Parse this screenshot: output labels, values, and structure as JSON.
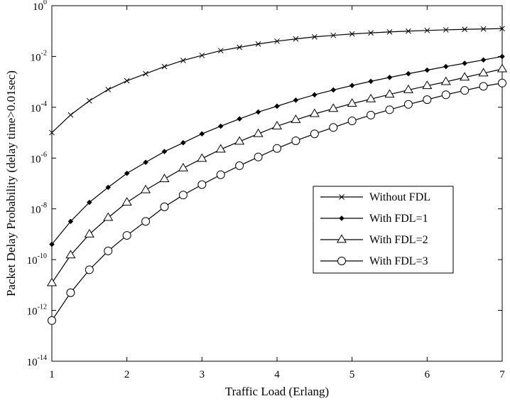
{
  "chart_data": {
    "type": "line",
    "title": "",
    "xlabel": "Traffic Load (Erlang)",
    "ylabel": "Packet Delay Probability (delay time>0.01sec)",
    "xlim": [
      1,
      7
    ],
    "ylim": [
      1e-14,
      1
    ],
    "y_scale": "log",
    "grid": false,
    "legend_position": "center-right",
    "x_ticks": [
      "1",
      "2",
      "3",
      "4",
      "5",
      "6",
      "7"
    ],
    "y_ticks": [
      {
        "base": "10",
        "exp": "0"
      },
      {
        "base": "10",
        "exp": "-2"
      },
      {
        "base": "10",
        "exp": "-4"
      },
      {
        "base": "10",
        "exp": "-6"
      },
      {
        "base": "10",
        "exp": "-8"
      },
      {
        "base": "10",
        "exp": "-10"
      },
      {
        "base": "10",
        "exp": "-12"
      },
      {
        "base": "10",
        "exp": "-14"
      }
    ],
    "x": [
      1,
      1.25,
      1.5,
      1.75,
      2,
      2.25,
      2.5,
      2.75,
      3,
      3.25,
      3.5,
      3.75,
      4,
      4.25,
      4.5,
      4.75,
      5,
      5.25,
      5.5,
      5.75,
      6,
      6.25,
      6.5,
      6.75,
      7
    ],
    "series": [
      {
        "name": "Without FDL",
        "marker": "x",
        "values": [
          1e-05,
          5e-05,
          0.00018,
          0.0005,
          0.0011,
          0.0021,
          0.004,
          0.007,
          0.011,
          0.017,
          0.023,
          0.031,
          0.04,
          0.049,
          0.059,
          0.068,
          0.077,
          0.085,
          0.093,
          0.1,
          0.106,
          0.112,
          0.117,
          0.121,
          0.125
        ]
      },
      {
        "name": "With FDL=1",
        "marker": "diamond",
        "values": [
          4e-10,
          3.2e-09,
          1.8e-08,
          7e-08,
          2.5e-07,
          6.8e-07,
          1.8e-06,
          4e-06,
          9e-06,
          1.8e-05,
          3.5e-05,
          6.5e-05,
          0.00011,
          0.00019,
          0.00031,
          0.00048,
          0.00072,
          0.00105,
          0.0015,
          0.0021,
          0.0029,
          0.004,
          0.0054,
          0.0073,
          0.01
        ]
      },
      {
        "name": "With FDL=2",
        "marker": "triangle",
        "values": [
          1.2e-11,
          1.5e-10,
          1e-09,
          4.5e-09,
          1.8e-08,
          5.5e-08,
          1.5e-07,
          4e-07,
          9.5e-07,
          2.2e-06,
          4.5e-06,
          9e-06,
          1.8e-05,
          3.2e-05,
          5.5e-05,
          8.8e-05,
          0.00014,
          0.00021,
          0.00032,
          0.00048,
          0.0007,
          0.001,
          0.0015,
          0.0022,
          0.0032
        ]
      },
      {
        "name": "With FDL=3",
        "marker": "circle",
        "values": [
          4e-13,
          5e-12,
          4e-11,
          2.2e-10,
          9e-10,
          3.2e-09,
          1.2e-08,
          3.5e-08,
          9e-08,
          2.2e-07,
          5e-07,
          1.1e-06,
          2.4e-06,
          4.8e-06,
          9e-06,
          1.6e-05,
          2.9e-05,
          4.9e-05,
          8e-05,
          0.00013,
          0.0002,
          0.00031,
          0.00046,
          0.00067,
          0.0009
        ]
      }
    ]
  }
}
